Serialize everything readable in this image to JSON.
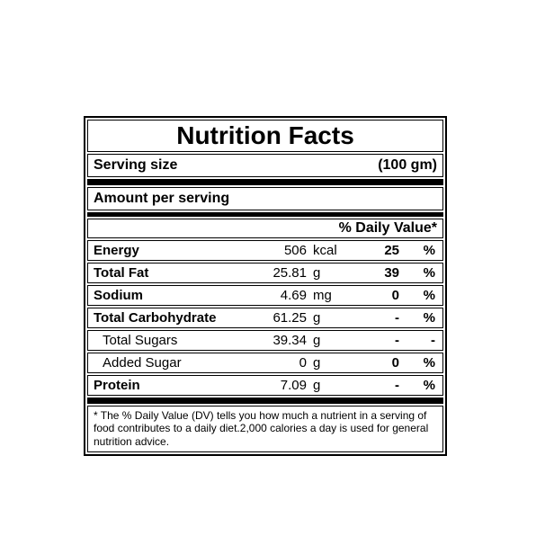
{
  "label": {
    "title": "Nutrition Facts",
    "serving": {
      "label": "Serving size",
      "value": "(100 gm)"
    },
    "amount_per_serving": "Amount per serving",
    "daily_value_header": "% Daily Value*",
    "rows": [
      {
        "name": "Energy",
        "amount": "506",
        "unit": "kcal",
        "dv": "25",
        "dv_unit": "%"
      },
      {
        "name": "Total Fat",
        "amount": "25.81",
        "unit": "g",
        "dv": "39",
        "dv_unit": "%"
      },
      {
        "name": "Sodium",
        "amount": "4.69",
        "unit": "mg",
        "dv": "0",
        "dv_unit": "%"
      },
      {
        "name": "Total Carbohydrate",
        "amount": "61.25",
        "unit": "g",
        "dv": "-",
        "dv_unit": "%"
      },
      {
        "name": "Total Sugars",
        "amount": "39.34",
        "unit": "g",
        "dv": "-",
        "dv_unit": "-"
      },
      {
        "name": "Added Sugar",
        "amount": "0",
        "unit": "g",
        "dv": "0",
        "dv_unit": "%"
      },
      {
        "name": "Protein",
        "amount": "7.09",
        "unit": "g",
        "dv": "-",
        "dv_unit": "%"
      }
    ],
    "footnote": "* The % Daily Value (DV) tells you how much a nutrient in a serving of food contributes to a daily diet.2,000 calories a day is used for general nutrition advice."
  },
  "colors": {
    "text": "#000000",
    "background": "#ffffff",
    "border": "#000000"
  }
}
